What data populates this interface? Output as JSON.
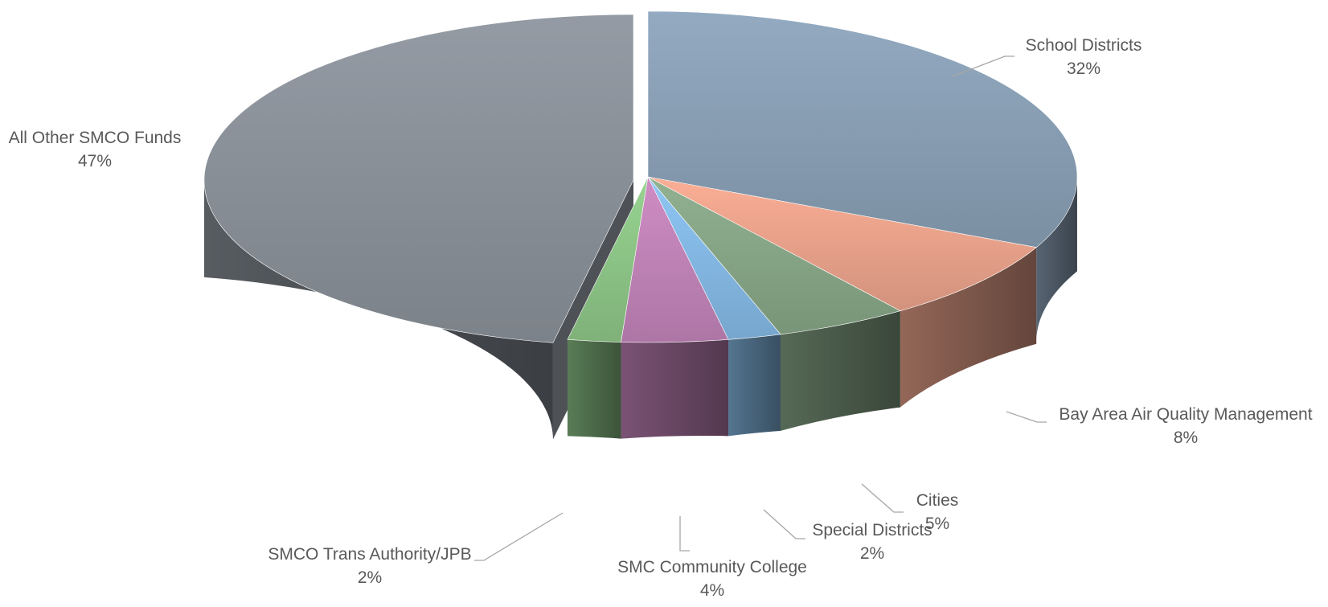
{
  "chart_data": {
    "type": "pie",
    "style": "3d-exploded",
    "title": "",
    "legend": "none",
    "slices": [
      {
        "label": "School Districts",
        "value": 32,
        "display": "32%",
        "color": "#8ca2b8"
      },
      {
        "label": "Bay Area Air Quality Management",
        "value": 8,
        "display": "8%",
        "color": "#efa68e"
      },
      {
        "label": "Cities",
        "value": 5,
        "display": "5%",
        "color": "#8aa98a"
      },
      {
        "label": "Special Districts",
        "value": 2,
        "display": "2%",
        "color": "#87bde9"
      },
      {
        "label": "SMC Community College",
        "value": 4,
        "display": "4%",
        "color": "#c586bb"
      },
      {
        "label": "SMCO Trans Authority/JPB",
        "value": 2,
        "display": "2%",
        "color": "#90c98a"
      },
      {
        "label": "All Other SMCO Funds",
        "value": 47,
        "display": "47%",
        "color": "#8d949c"
      }
    ]
  }
}
